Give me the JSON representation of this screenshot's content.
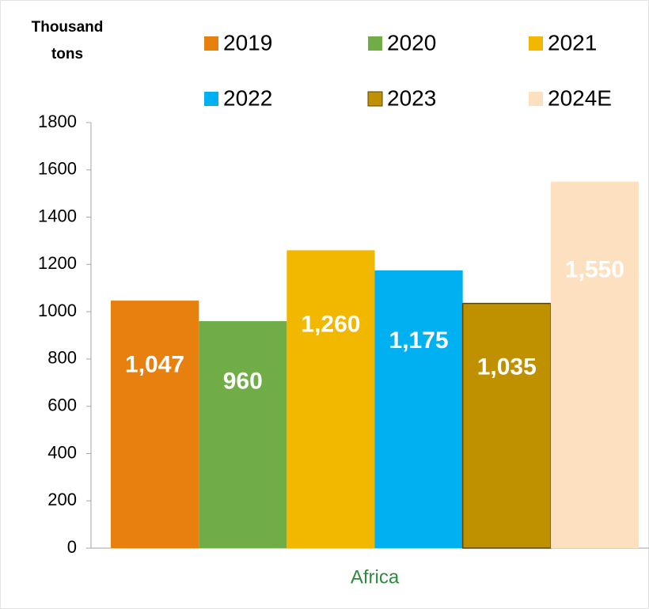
{
  "chart_data": {
    "type": "bar",
    "y_axis_label": "Thousand tons",
    "categories": [
      "Africa"
    ],
    "series": [
      {
        "name": "2019",
        "color": "#e8800f",
        "values": [
          1047
        ],
        "value_labels": [
          "1,047"
        ]
      },
      {
        "name": "2020",
        "color": "#70ad47",
        "values": [
          960
        ],
        "value_labels": [
          "960"
        ]
      },
      {
        "name": "2021",
        "color": "#f2b800",
        "values": [
          1260
        ],
        "value_labels": [
          "1,260"
        ]
      },
      {
        "name": "2022",
        "color": "#00b0f0",
        "values": [
          1175
        ],
        "value_labels": [
          "1,175"
        ]
      },
      {
        "name": "2023",
        "color": "#bf9000",
        "border_color": "#5c4500",
        "values": [
          1035
        ],
        "value_labels": [
          "1,035"
        ]
      },
      {
        "name": "2024E",
        "color": "#fde0c0",
        "values": [
          1550
        ],
        "value_labels": [
          "1,550"
        ]
      }
    ],
    "ylim": [
      0,
      1800
    ],
    "yticks": [
      0,
      200,
      400,
      600,
      800,
      1000,
      1200,
      1400,
      1600,
      1800
    ],
    "grid": false,
    "legend": "top"
  }
}
